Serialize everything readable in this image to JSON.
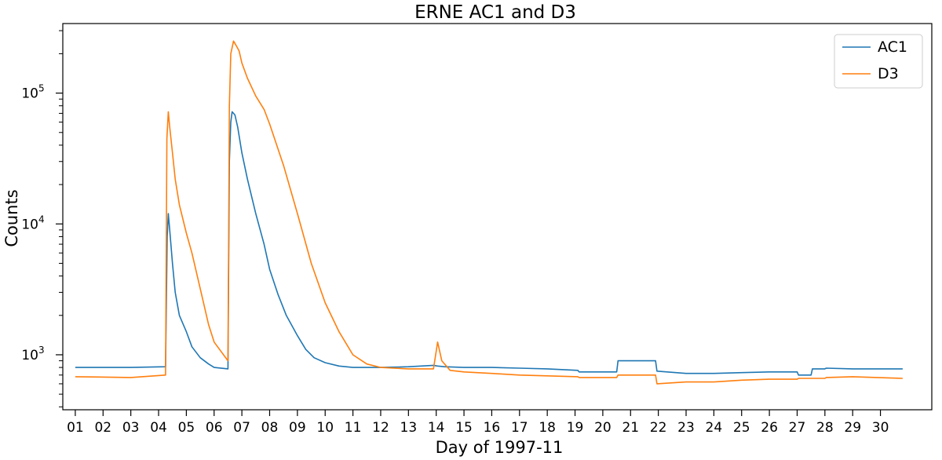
{
  "chart_data": {
    "type": "line",
    "title": "ERNE AC1 and D3",
    "xlabel": "Day of 1997-11",
    "ylabel": "Counts",
    "yscale": "log",
    "xlim": [
      0.55,
      31.85
    ],
    "ylim": [
      380,
      340000
    ],
    "grid": false,
    "legend_position": "top-right",
    "x_tick_labels": [
      "01",
      "02",
      "03",
      "04",
      "05",
      "06",
      "07",
      "08",
      "09",
      "10",
      "11",
      "12",
      "13",
      "14",
      "15",
      "16",
      "17",
      "18",
      "19",
      "20",
      "21",
      "22",
      "23",
      "24",
      "25",
      "26",
      "27",
      "28",
      "29",
      "30"
    ],
    "y_tick_labels": [
      {
        "value": 1000,
        "base": "10",
        "exp": "3"
      },
      {
        "value": 10000,
        "base": "10",
        "exp": "4"
      },
      {
        "value": 100000,
        "base": "10",
        "exp": "5"
      }
    ],
    "series": [
      {
        "name": "AC1",
        "color": "#1f77b4",
        "x": [
          1.0,
          3.0,
          4.25,
          4.31,
          4.35,
          4.4,
          4.5,
          4.6,
          4.75,
          5.0,
          5.2,
          5.5,
          5.8,
          6.0,
          6.5,
          6.55,
          6.6,
          6.65,
          6.7,
          6.75,
          6.85,
          7.0,
          7.2,
          7.5,
          7.8,
          8.0,
          8.3,
          8.6,
          9.0,
          9.3,
          9.6,
          10.0,
          10.5,
          11.0,
          12.0,
          13.0,
          13.9,
          14.05,
          14.3,
          15.0,
          16.0,
          17.0,
          18.0,
          19.1,
          19.15,
          20.5,
          20.55,
          21.9,
          21.95,
          23.0,
          24.0,
          25.0,
          26.0,
          27.0,
          27.05,
          27.5,
          27.55,
          28.0,
          28.05,
          29.0,
          30.8
        ],
        "y": [
          800,
          800,
          810,
          8000,
          12000,
          9000,
          5000,
          3000,
          2000,
          1500,
          1150,
          950,
          850,
          800,
          780,
          30000,
          60000,
          72000,
          70000,
          68000,
          55000,
          35000,
          22000,
          12000,
          7000,
          4500,
          2900,
          2000,
          1400,
          1100,
          950,
          870,
          820,
          800,
          800,
          810,
          830,
          820,
          810,
          800,
          800,
          790,
          780,
          760,
          740,
          740,
          900,
          900,
          750,
          720,
          720,
          730,
          740,
          740,
          700,
          700,
          780,
          780,
          790,
          780,
          780
        ]
      },
      {
        "name": "D3",
        "color": "#ff7f0e",
        "x": [
          1.0,
          3.0,
          4.25,
          4.3,
          4.35,
          4.4,
          4.5,
          4.6,
          4.75,
          5.0,
          5.2,
          5.5,
          5.8,
          6.0,
          6.5,
          6.55,
          6.6,
          6.7,
          6.8,
          6.9,
          7.0,
          7.2,
          7.5,
          7.8,
          8.0,
          8.5,
          9.0,
          9.5,
          10.0,
          10.5,
          11.0,
          11.5,
          12.0,
          13.0,
          13.9,
          14.05,
          14.2,
          14.5,
          15.0,
          16.0,
          17.0,
          18.0,
          19.1,
          19.15,
          20.5,
          20.55,
          21.9,
          21.95,
          23.0,
          24.0,
          25.0,
          26.0,
          27.0,
          27.05,
          28.0,
          28.05,
          29.0,
          30.8
        ],
        "y": [
          680,
          670,
          700,
          45000,
          72000,
          55000,
          35000,
          22000,
          14000,
          8500,
          6000,
          3200,
          1700,
          1250,
          900,
          80000,
          200000,
          250000,
          230000,
          210000,
          170000,
          130000,
          95000,
          75000,
          58000,
          28000,
          12000,
          5000,
          2500,
          1500,
          1000,
          850,
          800,
          780,
          780,
          1250,
          900,
          760,
          740,
          720,
          700,
          690,
          680,
          670,
          670,
          700,
          700,
          600,
          620,
          620,
          640,
          650,
          650,
          660,
          660,
          670,
          680,
          660
        ]
      }
    ]
  }
}
